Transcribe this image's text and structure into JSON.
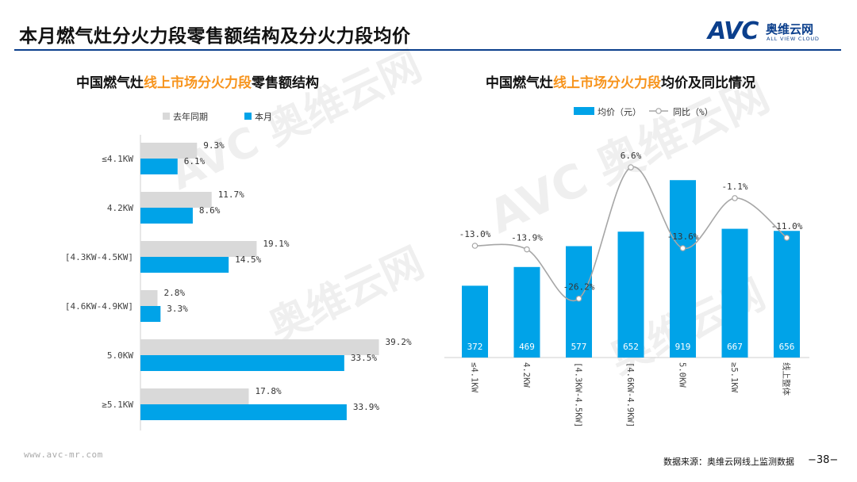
{
  "header": {
    "title": "本月燃气灶分火力段零售额结构及分火力段均价",
    "logo_text": "AVC",
    "logo_cn": "奥维云网",
    "logo_en": "ALL VIEW CLOUD"
  },
  "left_subtitle": {
    "prefix": "中国燃气灶",
    "highlight": "线上市场分火力段",
    "suffix": "零售额结构"
  },
  "right_subtitle": {
    "prefix": "中国燃气灶",
    "highlight": "线上市场分火力段",
    "suffix": "均价及同比情况"
  },
  "footer": {
    "website": "www.avc-mr.com",
    "source": "数据来源：奥维云网线上监测数据",
    "page": "−38−"
  },
  "colors": {
    "blue": "#00a3e8",
    "gray": "#d9d9d9",
    "line": "#a6a6a6",
    "accent": "#f7941d",
    "navy": "#0b3f8c"
  },
  "chart_data": [
    {
      "type": "bar",
      "orientation": "horizontal",
      "categories": [
        "≤4.1KW",
        "4.2KW",
        "[4.3KW-4.5KW]",
        "[4.6KW-4.9KW]",
        "5.0KW",
        "≥5.1KW"
      ],
      "series": [
        {
          "name": "去年同期",
          "values": [
            9.3,
            11.7,
            19.1,
            2.8,
            39.2,
            17.8
          ],
          "labels": [
            "9.3%",
            "11.7%",
            "19.1%",
            "2.8%",
            "39.2%",
            "17.8%"
          ],
          "color": "#d9d9d9"
        },
        {
          "name": "本月",
          "values": [
            6.1,
            8.6,
            14.5,
            3.3,
            33.5,
            33.9
          ],
          "labels": [
            "6.1%",
            "8.6%",
            "14.5%",
            "3.3%",
            "33.5%",
            "33.9%"
          ],
          "color": "#00a3e8"
        }
      ],
      "xlim": [
        0,
        45
      ],
      "legend": "top-left"
    },
    {
      "type": "bar+line",
      "categories": [
        "≤4.1KW",
        "4.2KW",
        "[4.3KW-4.5KW]",
        "[4.6KW-4.9KW]",
        "5.0KW",
        "≥5.1KW",
        "线上整体"
      ],
      "bar_series": {
        "name": "均价（元）",
        "values": [
          372,
          469,
          577,
          652,
          919,
          667,
          656
        ],
        "labels": [
          "372",
          "469",
          "577",
          "652",
          "919",
          "667",
          "656"
        ],
        "color": "#00a3e8"
      },
      "line_series": {
        "name": "同比（%）",
        "values": [
          -13.0,
          -13.9,
          -26.2,
          6.6,
          -13.6,
          -1.1,
          -11.0
        ],
        "labels": [
          "-13.0%",
          "-13.9%",
          "-26.2%",
          "6.6%",
          "-13.6%",
          "-1.1%",
          "-11.0%"
        ],
        "color": "#a6a6a6"
      },
      "ylim_bar": [
        0,
        1000
      ],
      "ylim_line": [
        -30,
        10
      ],
      "legend": "top-center"
    }
  ]
}
